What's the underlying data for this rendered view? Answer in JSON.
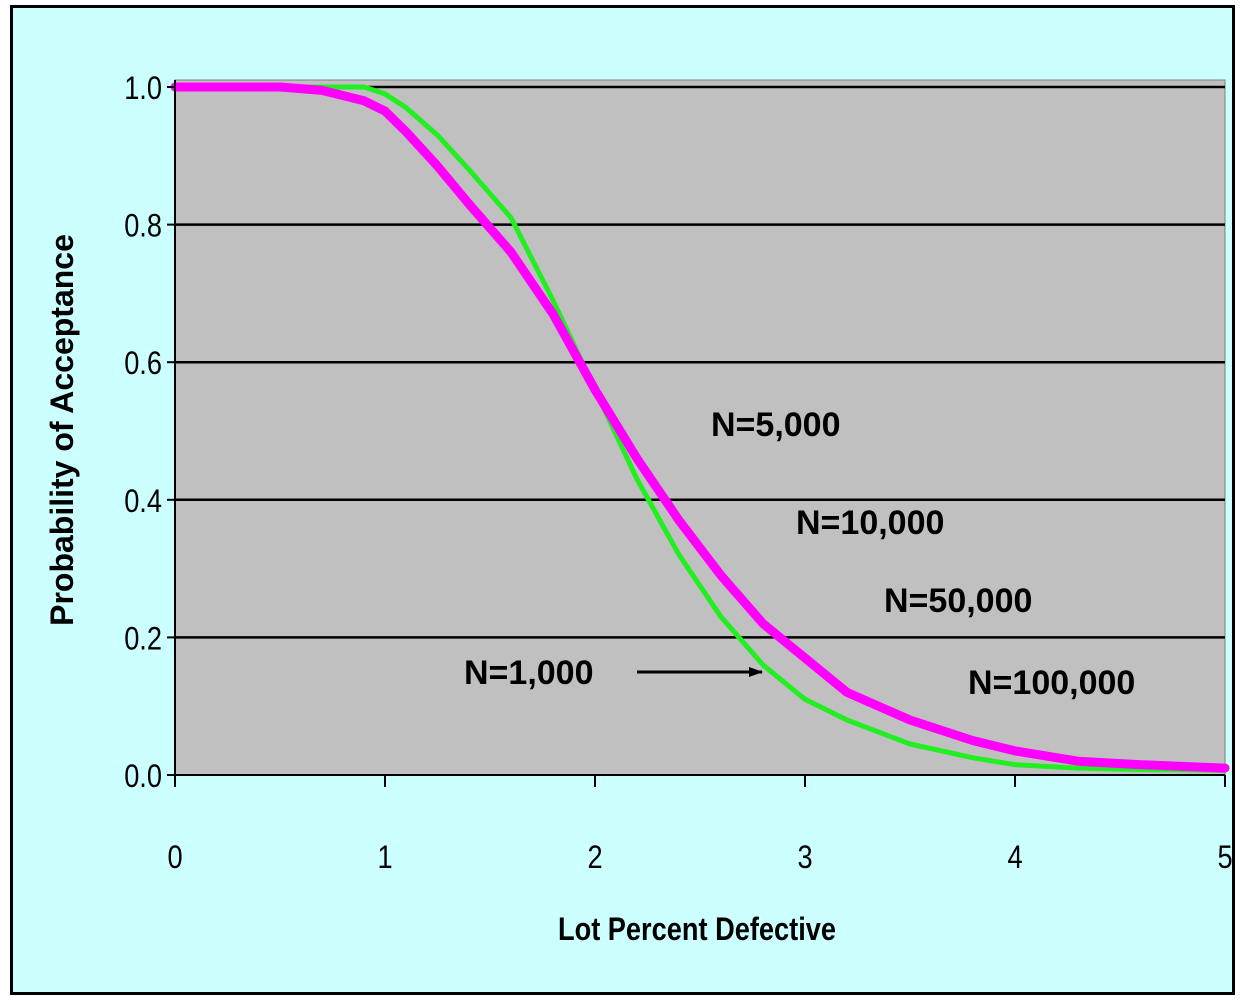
{
  "chart_data": {
    "type": "line",
    "title": "",
    "xlabel": "Lot Percent Defective",
    "ylabel": "Probability of Acceptance",
    "xlim": [
      0,
      5
    ],
    "ylim": [
      0,
      1
    ],
    "x_ticks": [
      "0",
      "1",
      "2",
      "3",
      "4",
      "5"
    ],
    "y_ticks": [
      "0.0",
      "0.2",
      "0.4",
      "0.6",
      "0.8",
      "1.0"
    ],
    "grid": "horizontal",
    "plot_background": "#c0c0c0",
    "series": [
      {
        "color": "#22ee22",
        "x": [
          0,
          0.5,
          0.9,
          1.0,
          1.1,
          1.25,
          1.4,
          1.6,
          1.8,
          2.0,
          2.2,
          2.4,
          2.6,
          2.8,
          3.0,
          3.2,
          3.5,
          3.8,
          4.0,
          4.3,
          4.6,
          5.0
        ],
        "y": [
          1.0,
          1.0,
          1.0,
          0.99,
          0.97,
          0.93,
          0.88,
          0.81,
          0.69,
          0.56,
          0.43,
          0.32,
          0.23,
          0.16,
          0.11,
          0.08,
          0.045,
          0.025,
          0.015,
          0.01,
          0.008,
          0.007
        ]
      },
      {
        "color": "#ff00ff",
        "x": [
          0,
          0.5,
          0.7,
          0.9,
          1.0,
          1.1,
          1.25,
          1.4,
          1.6,
          1.8,
          2.0,
          2.2,
          2.4,
          2.6,
          2.8,
          3.0,
          3.2,
          3.5,
          3.8,
          4.0,
          4.3,
          4.6,
          5.0
        ],
        "y": [
          1.0,
          1.0,
          0.995,
          0.98,
          0.965,
          0.935,
          0.885,
          0.83,
          0.76,
          0.67,
          0.56,
          0.46,
          0.37,
          0.29,
          0.22,
          0.17,
          0.12,
          0.08,
          0.05,
          0.035,
          0.02,
          0.015,
          0.01
        ]
      }
    ],
    "annotations": [
      {
        "text": "N=5,000"
      },
      {
        "text": "N=10,000"
      },
      {
        "text": "N=50,000"
      },
      {
        "text": "N=100,000"
      },
      {
        "text": "N=1,000"
      }
    ],
    "arrow_target": {
      "x": 2.8,
      "y": 0.155
    }
  }
}
